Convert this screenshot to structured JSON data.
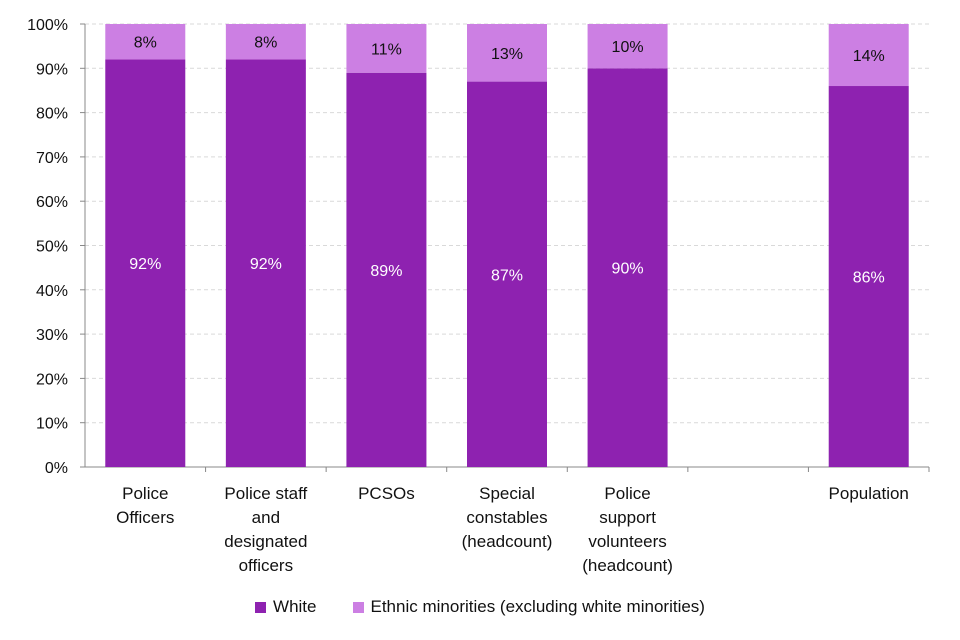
{
  "chart_data": {
    "type": "bar",
    "stacked": true,
    "categories": [
      "Police\nOfficers",
      "Police staff\nand\ndesignated\nofficers",
      "PCSOs",
      "Special\nconstables\n(headcount)",
      "Police\nsupport\nvolunteers\n(headcount)",
      "",
      "Population"
    ],
    "series": [
      {
        "name": "White",
        "color": "#8E22B0",
        "values": [
          92,
          92,
          89,
          87,
          90,
          null,
          86
        ],
        "labels": [
          "92%",
          "92%",
          "89%",
          "87%",
          "90%",
          "",
          "86%"
        ]
      },
      {
        "name": "Ethnic minorities (excluding white minorities)",
        "color": "#CC7FE3",
        "values": [
          8,
          8,
          11,
          13,
          10,
          null,
          14
        ],
        "labels": [
          "8%",
          "8%",
          "11%",
          "13%",
          "10%",
          "",
          "14%"
        ]
      }
    ],
    "yticks": [
      "0%",
      "10%",
      "20%",
      "30%",
      "40%",
      "50%",
      "60%",
      "70%",
      "80%",
      "90%",
      "100%"
    ],
    "ylim": [
      0,
      100
    ],
    "grid": true,
    "legend_position": "bottom",
    "title": "",
    "xlabel": "",
    "ylabel": ""
  }
}
